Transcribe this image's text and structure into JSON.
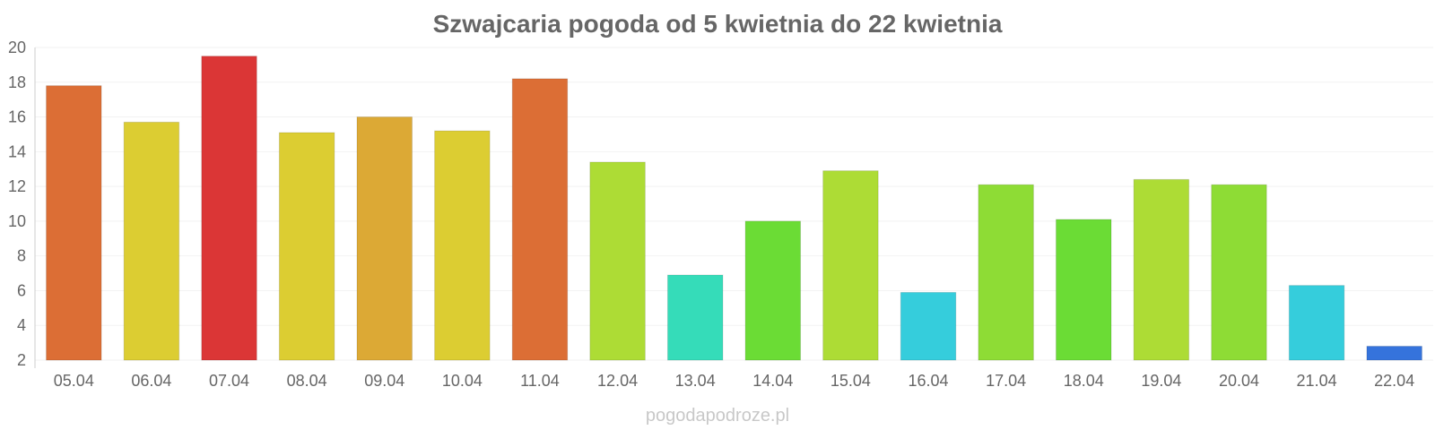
{
  "chart_data": {
    "type": "bar",
    "title": "Szwajcaria pogoda od 5 kwietnia do 22 kwietnia",
    "xlabel": "",
    "ylabel": "",
    "categories": [
      "05.04",
      "06.04",
      "07.04",
      "08.04",
      "09.04",
      "10.04",
      "11.04",
      "12.04",
      "13.04",
      "14.04",
      "15.04",
      "16.04",
      "17.04",
      "18.04",
      "19.04",
      "20.04",
      "21.04",
      "22.04"
    ],
    "values": [
      17.8,
      15.7,
      19.5,
      15.1,
      16.0,
      15.2,
      18.2,
      13.4,
      6.9,
      10.0,
      12.9,
      5.9,
      12.1,
      10.1,
      12.4,
      12.1,
      6.3,
      2.8
    ],
    "colors": [
      "#dc6e35",
      "#dccd32",
      "#db3636",
      "#dccd32",
      "#dca935",
      "#dccd32",
      "#dc6e35",
      "#addc35",
      "#35dcb9",
      "#6bdc35",
      "#addc35",
      "#35cddc",
      "#8edc35",
      "#6bdc35",
      "#addc35",
      "#8edc35",
      "#35cddc",
      "#3573dc"
    ],
    "ylim": [
      2,
      20
    ],
    "yticks": [
      2,
      4,
      6,
      8,
      10,
      12,
      14,
      16,
      18,
      20
    ],
    "grid": true,
    "legend": "none"
  },
  "watermark": "pogodapodroze.pl"
}
